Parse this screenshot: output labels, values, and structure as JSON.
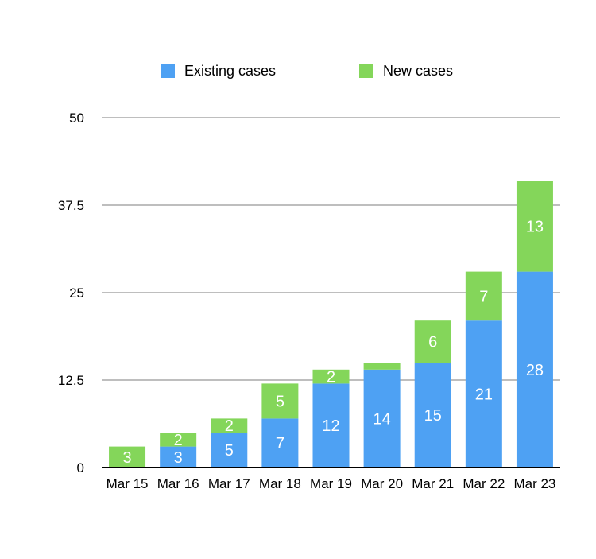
{
  "chart_data": {
    "type": "bar",
    "stacked": true,
    "categories": [
      "Mar 15",
      "Mar 16",
      "Mar 17",
      "Mar 18",
      "Mar 19",
      "Mar 20",
      "Mar 21",
      "Mar 22",
      "Mar 23"
    ],
    "series": [
      {
        "name": "Existing cases",
        "values": [
          0,
          3,
          5,
          7,
          12,
          14,
          15,
          21,
          28
        ],
        "color": "#4ea1f3",
        "labels": [
          "",
          "3",
          "5",
          "7",
          "12",
          "14",
          "15",
          "21",
          "28"
        ]
      },
      {
        "name": "New cases",
        "values": [
          3,
          2,
          2,
          5,
          2,
          1,
          6,
          7,
          13
        ],
        "color": "#84d65a",
        "labels": [
          "3",
          "2",
          "2",
          "5",
          "2",
          "",
          "6",
          "7",
          "13"
        ]
      }
    ],
    "y_ticks": [
      "0",
      "12.5",
      "25",
      "37.5",
      "50"
    ],
    "ylim": [
      0,
      50
    ],
    "grid": true,
    "legend_position": "top"
  }
}
